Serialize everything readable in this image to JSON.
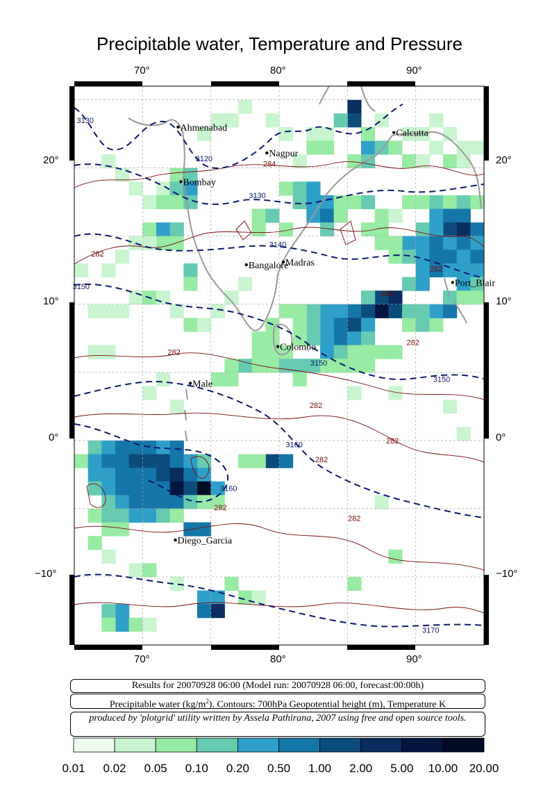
{
  "title": "Precipitable water, Temperature and Pressure",
  "axes": {
    "lon_ticks": [
      "70°",
      "80°",
      "90°"
    ],
    "lat_ticks": [
      "20°",
      "10°",
      "0°",
      "−10°"
    ]
  },
  "cities": [
    {
      "name": "Ahmenabad",
      "lon": 72.6,
      "lat": 23.0
    },
    {
      "name": "Calcutta",
      "lon": 88.4,
      "lat": 22.6
    },
    {
      "name": "Nagpur",
      "lon": 79.1,
      "lat": 21.1
    },
    {
      "name": "Bombay",
      "lon": 72.8,
      "lat": 19.0
    },
    {
      "name": "Bangalore",
      "lon": 77.6,
      "lat": 12.9
    },
    {
      "name": "Madras",
      "lon": 80.3,
      "lat": 13.1
    },
    {
      "name": "Port_Blair",
      "lon": 92.7,
      "lat": 11.6
    },
    {
      "name": "Colombo",
      "lon": 79.9,
      "lat": 6.9
    },
    {
      "name": "Male",
      "lon": 73.5,
      "lat": 4.2
    },
    {
      "name": "Diego_Garcia",
      "lon": 72.4,
      "lat": -7.3
    }
  ],
  "contour_labels": [
    {
      "text": "3130",
      "lon": 65.8,
      "lat": 23.3,
      "color": "#0b1a6e"
    },
    {
      "text": "3120",
      "lon": 74.5,
      "lat": 20.5,
      "color": "#0b1a6e"
    },
    {
      "text": "3130",
      "lon": 78.4,
      "lat": 17.8,
      "color": "#0b1a6e"
    },
    {
      "text": "3140",
      "lon": 79.9,
      "lat": 14.2,
      "color": "#0b1a6e"
    },
    {
      "text": "3150",
      "lon": 65.5,
      "lat": 11.1,
      "color": "#0b1a6e"
    },
    {
      "text": "3150",
      "lon": 82.9,
      "lat": 5.5,
      "color": "#0b1a6e"
    },
    {
      "text": "3150",
      "lon": 91.9,
      "lat": 4.3,
      "color": "#0b1a6e"
    },
    {
      "text": "3160",
      "lon": 81.1,
      "lat": -0.5,
      "color": "#0b1a6e"
    },
    {
      "text": "3160",
      "lon": 76.3,
      "lat": -3.7,
      "color": "#0b1a6e"
    },
    {
      "text": "3170",
      "lon": 91.1,
      "lat": -14.1,
      "color": "#0b1a6e"
    },
    {
      "text": "284",
      "lon": 79.3,
      "lat": 20.1,
      "color": "#7a0a0a"
    },
    {
      "text": "282",
      "lon": 66.7,
      "lat": 13.5,
      "color": "#7a0a0a"
    },
    {
      "text": "282",
      "lon": 72.3,
      "lat": 6.3,
      "color": "#7a0a0a"
    },
    {
      "text": "282",
      "lon": 82.7,
      "lat": 2.4,
      "color": "#7a0a0a"
    },
    {
      "text": "282",
      "lon": 83.1,
      "lat": -1.6,
      "color": "#7a0a0a"
    },
    {
      "text": "282",
      "lon": 88.3,
      "lat": -0.2,
      "color": "#7a0a0a"
    },
    {
      "text": "282",
      "lon": 75.7,
      "lat": -5.1,
      "color": "#7a0a0a"
    },
    {
      "text": "282",
      "lon": 85.5,
      "lat": -5.9,
      "color": "#7a0a0a"
    },
    {
      "text": "282",
      "lon": 87.9,
      "lat": 10.6,
      "color": "#7a0a0a"
    },
    {
      "text": "282",
      "lon": 89.8,
      "lat": 7.0,
      "color": "#7a0a0a"
    },
    {
      "text": "282",
      "lon": 91.5,
      "lat": 12.4,
      "color": "#7a0a0a"
    }
  ],
  "info": {
    "results": "Results for 20070928 06:00 (Model run: 20070928 06:00, forecast:00:00h)",
    "legend_pre": "Precipitable water (kg/m",
    "legend_sup": "2",
    "legend_post": ").  Contours: 700hPa Geopotential height (m), Temperature K",
    "credit": "produced by 'plotgrid' utility written by Assela Pathirana, 2007 using free and open source tools."
  },
  "colorbar": {
    "labels": [
      "0.01",
      "0.02",
      "0.05",
      "0.10",
      "0.20",
      "0.50",
      "1.00",
      "2.00",
      "5.00",
      "10.00",
      "20.00"
    ],
    "colors": [
      "#eefcef",
      "#c8f5d0",
      "#98eba3",
      "#66cbb0",
      "#2ea0c8",
      "#1576a8",
      "#0c4c7a",
      "#082d5e",
      "#041640",
      "#020b26",
      "#01030f"
    ]
  },
  "precip_cells": [
    [
      85,
      24.5,
      7
    ],
    [
      85,
      23.5,
      6
    ],
    [
      84,
      23.5,
      3
    ],
    [
      83,
      22.5,
      1
    ],
    [
      82,
      22.5,
      1
    ],
    [
      82,
      21.5,
      2
    ],
    [
      83,
      21.5,
      2
    ],
    [
      86,
      21.5,
      4
    ],
    [
      87,
      21.5,
      3
    ],
    [
      88,
      21.5,
      2
    ],
    [
      89,
      20.5,
      2
    ],
    [
      90,
      20.5,
      1
    ],
    [
      91,
      21.5,
      1
    ],
    [
      93,
      21.5,
      1
    ],
    [
      94,
      21.5,
      1
    ],
    [
      92,
      20.5,
      2
    ],
    [
      93,
      20.5,
      1
    ],
    [
      85,
      20.5,
      2
    ],
    [
      86,
      20.5,
      3
    ],
    [
      81,
      20.5,
      1
    ],
    [
      72,
      19.5,
      2
    ],
    [
      73,
      19.5,
      3
    ],
    [
      71,
      18.5,
      1
    ],
    [
      72,
      18.5,
      3
    ],
    [
      73,
      18.5,
      4
    ],
    [
      70,
      17.5,
      1
    ],
    [
      71,
      17.5,
      2
    ],
    [
      72,
      17.5,
      2
    ],
    [
      73,
      17.5,
      3
    ],
    [
      80,
      18.5,
      2
    ],
    [
      81,
      18.5,
      3
    ],
    [
      82,
      18.5,
      4
    ],
    [
      81,
      17.5,
      3
    ],
    [
      82,
      17.5,
      4
    ],
    [
      83,
      17.5,
      4
    ],
    [
      82,
      16.5,
      4
    ],
    [
      83,
      16.5,
      5
    ],
    [
      83,
      15.5,
      3
    ],
    [
      84,
      16.5,
      2
    ],
    [
      78,
      16.5,
      2
    ],
    [
      79,
      16.5,
      3
    ],
    [
      80,
      15.5,
      2
    ],
    [
      78,
      15.5,
      2
    ],
    [
      84,
      17.5,
      2
    ],
    [
      85,
      17.5,
      2
    ],
    [
      86,
      17.5,
      3
    ],
    [
      87,
      16.5,
      2
    ],
    [
      88,
      16.5,
      1
    ],
    [
      89,
      17.5,
      2
    ],
    [
      90,
      17.5,
      2
    ],
    [
      91,
      17.5,
      3
    ],
    [
      92,
      17.5,
      2
    ],
    [
      93,
      17.5,
      3
    ],
    [
      94,
      17.5,
      2
    ],
    [
      91,
      16.5,
      4
    ],
    [
      92,
      16.5,
      5
    ],
    [
      93,
      16.5,
      5
    ],
    [
      92,
      15.5,
      6
    ],
    [
      93,
      15.5,
      7
    ],
    [
      94,
      15.5,
      5
    ],
    [
      90,
      15.5,
      3
    ],
    [
      91,
      15.5,
      4
    ],
    [
      89,
      14.5,
      4
    ],
    [
      90,
      14.5,
      4
    ],
    [
      91,
      14.5,
      5
    ],
    [
      92,
      14.5,
      4
    ],
    [
      93,
      14.5,
      5
    ],
    [
      94,
      14.5,
      4
    ],
    [
      88,
      14.5,
      2
    ],
    [
      87,
      14.5,
      2
    ],
    [
      86,
      15.5,
      2
    ],
    [
      87,
      15.5,
      2
    ],
    [
      88,
      13.5,
      2
    ],
    [
      89,
      13.5,
      3
    ],
    [
      90,
      13.5,
      4
    ],
    [
      91,
      13.5,
      5
    ],
    [
      92,
      13.5,
      5
    ],
    [
      93,
      13.5,
      4
    ],
    [
      94,
      13.5,
      5
    ],
    [
      90,
      12.5,
      4
    ],
    [
      91,
      12.5,
      5
    ],
    [
      92,
      12.5,
      4
    ],
    [
      93,
      12.5,
      4
    ],
    [
      94,
      12.5,
      4
    ],
    [
      89,
      11.5,
      3
    ],
    [
      90,
      11.5,
      4
    ],
    [
      93,
      11.5,
      4
    ],
    [
      94,
      11.5,
      3
    ],
    [
      70,
      15.5,
      2
    ],
    [
      71,
      15.5,
      4
    ],
    [
      72,
      15.5,
      3
    ],
    [
      71,
      14.5,
      2
    ],
    [
      72,
      14.5,
      2
    ],
    [
      69,
      14.5,
      1
    ],
    [
      70,
      14.5,
      1
    ],
    [
      73,
      12.5,
      3
    ],
    [
      73,
      11.5,
      2
    ],
    [
      87,
      10.5,
      6
    ],
    [
      88,
      10.5,
      7
    ],
    [
      87,
      9.5,
      8
    ],
    [
      88,
      9.5,
      6
    ],
    [
      86,
      10.5,
      3
    ],
    [
      85,
      9.5,
      5
    ],
    [
      86,
      9.5,
      6
    ],
    [
      84,
      9.5,
      4
    ],
    [
      83,
      9.5,
      4
    ],
    [
      82,
      9.5,
      3
    ],
    [
      81,
      9.5,
      2
    ],
    [
      80,
      9.5,
      2
    ],
    [
      83,
      8.5,
      4
    ],
    [
      84,
      8.5,
      5
    ],
    [
      85,
      8.5,
      6
    ],
    [
      86,
      8.5,
      4
    ],
    [
      82,
      8.5,
      3
    ],
    [
      81,
      8.5,
      2
    ],
    [
      84,
      7.5,
      5
    ],
    [
      83,
      7.5,
      4
    ],
    [
      85,
      7.5,
      4
    ],
    [
      86,
      7.5,
      3
    ],
    [
      82,
      7.5,
      3
    ],
    [
      81,
      7.5,
      2
    ],
    [
      83,
      6.5,
      4
    ],
    [
      84,
      6.5,
      3
    ],
    [
      85,
      6.5,
      2
    ],
    [
      86,
      6.5,
      2
    ],
    [
      87,
      6.5,
      2
    ],
    [
      88,
      6.5,
      2
    ],
    [
      89,
      8.5,
      2
    ],
    [
      90,
      8.5,
      3
    ],
    [
      91,
      8.5,
      2
    ],
    [
      91,
      9.5,
      4
    ],
    [
      92,
      9.5,
      5
    ],
    [
      90,
      9.5,
      3
    ],
    [
      89,
      9.5,
      3
    ],
    [
      92,
      10.5,
      3
    ],
    [
      93,
      10.5,
      2
    ],
    [
      94,
      10.5,
      2
    ],
    [
      79,
      8.5,
      2
    ],
    [
      79,
      7.5,
      2
    ],
    [
      78,
      7.5,
      2
    ],
    [
      80,
      6.5,
      2
    ],
    [
      79,
      6.5,
      2
    ],
    [
      78,
      6.5,
      2
    ],
    [
      77,
      5.5,
      3
    ],
    [
      78,
      5.5,
      2
    ],
    [
      76,
      5.5,
      2
    ],
    [
      79,
      5.5,
      2
    ],
    [
      80,
      5.5,
      3
    ],
    [
      81,
      5.5,
      3
    ],
    [
      82,
      5.5,
      3
    ],
    [
      83,
      5.5,
      2
    ],
    [
      84,
      5.5,
      2
    ],
    [
      85,
      5.5,
      2
    ],
    [
      86,
      5.5,
      2
    ],
    [
      75,
      4.5,
      2
    ],
    [
      76,
      4.5,
      2
    ],
    [
      81,
      4.5,
      2
    ],
    [
      66,
      -0.5,
      3
    ],
    [
      67,
      -0.5,
      4
    ],
    [
      68,
      -0.5,
      5
    ],
    [
      69,
      -0.5,
      5
    ],
    [
      70,
      -0.5,
      5
    ],
    [
      71,
      -0.5,
      4
    ],
    [
      72,
      -0.5,
      5
    ],
    [
      65,
      -1.5,
      2
    ],
    [
      66,
      -1.5,
      4
    ],
    [
      67,
      -1.5,
      5
    ],
    [
      68,
      -1.5,
      5
    ],
    [
      69,
      -1.5,
      6
    ],
    [
      70,
      -1.5,
      6
    ],
    [
      71,
      -1.5,
      6
    ],
    [
      72,
      -1.5,
      5
    ],
    [
      73,
      -1.5,
      4
    ],
    [
      74,
      -1.5,
      3
    ],
    [
      66,
      -2.5,
      4
    ],
    [
      67,
      -2.5,
      4
    ],
    [
      68,
      -2.5,
      5
    ],
    [
      69,
      -2.5,
      5
    ],
    [
      70,
      -2.5,
      5
    ],
    [
      71,
      -2.5,
      6
    ],
    [
      72,
      -2.5,
      7
    ],
    [
      73,
      -2.5,
      5
    ],
    [
      74,
      -2.5,
      4
    ],
    [
      66,
      -3.5,
      3
    ],
    [
      67,
      -3.5,
      4
    ],
    [
      68,
      -3.5,
      5
    ],
    [
      69,
      -3.5,
      5
    ],
    [
      70,
      -3.5,
      5
    ],
    [
      71,
      -3.5,
      5
    ],
    [
      72,
      -3.5,
      8
    ],
    [
      73,
      -3.5,
      6
    ],
    [
      74,
      -3.5,
      9
    ],
    [
      75,
      -3.5,
      4
    ],
    [
      67,
      -4.5,
      3
    ],
    [
      68,
      -4.5,
      4
    ],
    [
      69,
      -4.5,
      5
    ],
    [
      70,
      -4.5,
      5
    ],
    [
      71,
      -4.5,
      5
    ],
    [
      72,
      -4.5,
      5
    ],
    [
      73,
      -4.5,
      3
    ],
    [
      74,
      -4.5,
      2
    ],
    [
      75,
      -4.5,
      2
    ],
    [
      66,
      -5.5,
      2
    ],
    [
      67,
      -5.5,
      3
    ],
    [
      68,
      -5.5,
      3
    ],
    [
      69,
      -5.5,
      4
    ],
    [
      70,
      -5.5,
      4
    ],
    [
      71,
      -5.5,
      3
    ],
    [
      72,
      -5.5,
      2
    ],
    [
      73,
      -6.5,
      5
    ],
    [
      74,
      -6.5,
      5
    ],
    [
      67,
      -6.5,
      2
    ],
    [
      68,
      -6.5,
      2
    ],
    [
      79,
      -1.5,
      6
    ],
    [
      80,
      -1.5,
      5
    ],
    [
      77,
      -1.5,
      2
    ],
    [
      78,
      -1.5,
      2
    ],
    [
      74,
      -11.5,
      4
    ],
    [
      75,
      -11.5,
      4
    ],
    [
      74,
      -12.5,
      5
    ],
    [
      75,
      -12.5,
      7
    ],
    [
      68,
      -12.5,
      4
    ],
    [
      67,
      -12.5,
      3
    ],
    [
      68,
      -13.5,
      4
    ],
    [
      69,
      -13.5,
      2
    ],
    [
      70,
      -13.5,
      1
    ],
    [
      67,
      -13.5,
      2
    ],
    [
      66,
      -7.5,
      2
    ],
    [
      67,
      -8.5,
      1
    ],
    [
      69,
      -9.5,
      1
    ],
    [
      70,
      -9.5,
      2
    ],
    [
      88,
      -8.5,
      2
    ],
    [
      85,
      -10.5,
      2
    ],
    [
      76,
      -10.5,
      2
    ],
    [
      77,
      -11.5,
      2
    ],
    [
      78,
      -11.5,
      1
    ],
    [
      72,
      -10.5,
      1
    ],
    [
      66,
      6.5,
      1
    ],
    [
      67,
      6.5,
      1
    ],
    [
      70,
      3.5,
      1
    ],
    [
      72,
      2.5,
      1
    ],
    [
      71,
      4.5,
      1
    ],
    [
      85,
      3.5,
      1
    ],
    [
      88,
      3.5,
      1
    ],
    [
      92,
      2.5,
      1
    ],
    [
      93,
      0.5,
      1
    ],
    [
      87,
      -4.5,
      1
    ],
    [
      66,
      9.5,
      1
    ],
    [
      67,
      9.5,
      1
    ],
    [
      68,
      9.5,
      1
    ],
    [
      69,
      10.5,
      1
    ],
    [
      70,
      10.5,
      2
    ],
    [
      71,
      10.5,
      1
    ],
    [
      72,
      9.5,
      1
    ],
    [
      73,
      8.5,
      2
    ],
    [
      74,
      8.5,
      1
    ],
    [
      75,
      9.5,
      1
    ],
    [
      76,
      10.5,
      1
    ],
    [
      77,
      11.5,
      1
    ],
    [
      65,
      12.5,
      1
    ],
    [
      67,
      12.5,
      1
    ],
    [
      68,
      13.5,
      1
    ],
    [
      74,
      22.5,
      1
    ],
    [
      75,
      23.5,
      1
    ],
    [
      76,
      23.5,
      1
    ],
    [
      77,
      24.5,
      1
    ],
    [
      80,
      22.5,
      1
    ],
    [
      79,
      23.5,
      1
    ],
    [
      86,
      22.5,
      2
    ],
    [
      87,
      23.5,
      1
    ],
    [
      89,
      22.5,
      1
    ],
    [
      90,
      22.5,
      1
    ],
    [
      91,
      23.5,
      1
    ],
    [
      92,
      22.5,
      1
    ],
    [
      68,
      19.5,
      1
    ],
    [
      69,
      18.5,
      1
    ],
    [
      67,
      20.5,
      1
    ]
  ]
}
